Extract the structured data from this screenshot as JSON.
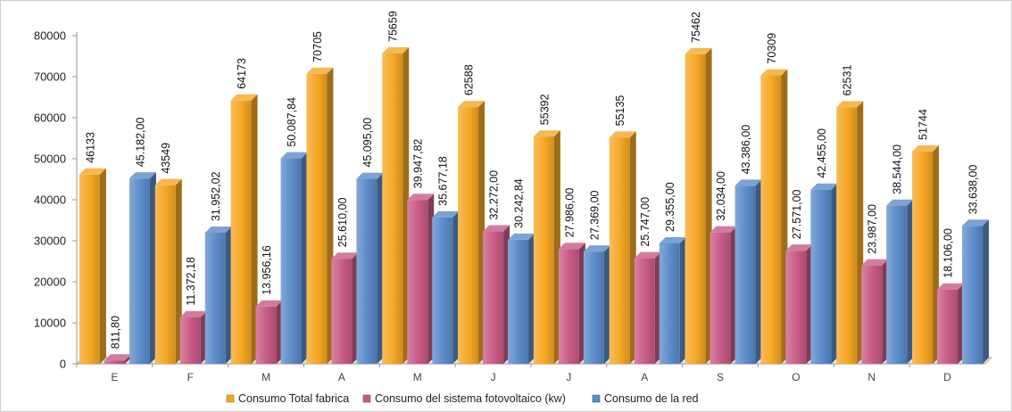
{
  "chart_data": {
    "type": "bar",
    "title": "",
    "xlabel": "",
    "ylabel": "",
    "ylim": [
      0,
      80000
    ],
    "yticks": [
      0,
      10000,
      20000,
      30000,
      40000,
      50000,
      60000,
      70000,
      80000
    ],
    "grid": false,
    "legend_position": "bottom",
    "categories": [
      "E",
      "F",
      "M",
      "A",
      "M",
      "J",
      "J",
      "A",
      "S",
      "O",
      "N",
      "D"
    ],
    "series": [
      {
        "name": "Consumo Total fabrica",
        "color": "#F5A623",
        "values": [
          46133,
          43549,
          64173,
          70705,
          75659,
          62588,
          55392,
          55135,
          75462,
          70309,
          62531,
          51744
        ],
        "labels": [
          "46133",
          "43549",
          "64173",
          "70705",
          "75659",
          "62588",
          "55392",
          "55135",
          "75462",
          "70309",
          "62531",
          "51744"
        ]
      },
      {
        "name": "Consumo del sistema fotovoltaico (kw)",
        "color": "#C85A86",
        "values": [
          811.8,
          11372.18,
          13956.16,
          25610.0,
          39947.82,
          32272.0,
          27986.0,
          25747.0,
          32034.0,
          27571.0,
          23987.0,
          18106.0
        ],
        "labels": [
          "811,80",
          "11.372,18",
          "13.956,16",
          "25.610,00",
          "39.947,82",
          "32.272,00",
          "27.986,00",
          "25.747,00",
          "32.034,00",
          "27.571,00",
          "23.987,00",
          "18.106,00"
        ]
      },
      {
        "name": "Consumo de la red",
        "color": "#5B8BC9",
        "values": [
          45182.0,
          31952.02,
          50087.84,
          45095.0,
          35677.18,
          30242.84,
          27369.0,
          29355.0,
          43386.0,
          42455.0,
          38544.0,
          33638.0
        ],
        "labels": [
          "45.182,00",
          "31.952,02",
          "50.087,84",
          "45.095,00",
          "35.677,18",
          "30.242,84",
          "27.369,00",
          "29.355,00",
          "43.386,00",
          "42.455,00",
          "38.544,00",
          "33.638,00"
        ]
      }
    ]
  }
}
